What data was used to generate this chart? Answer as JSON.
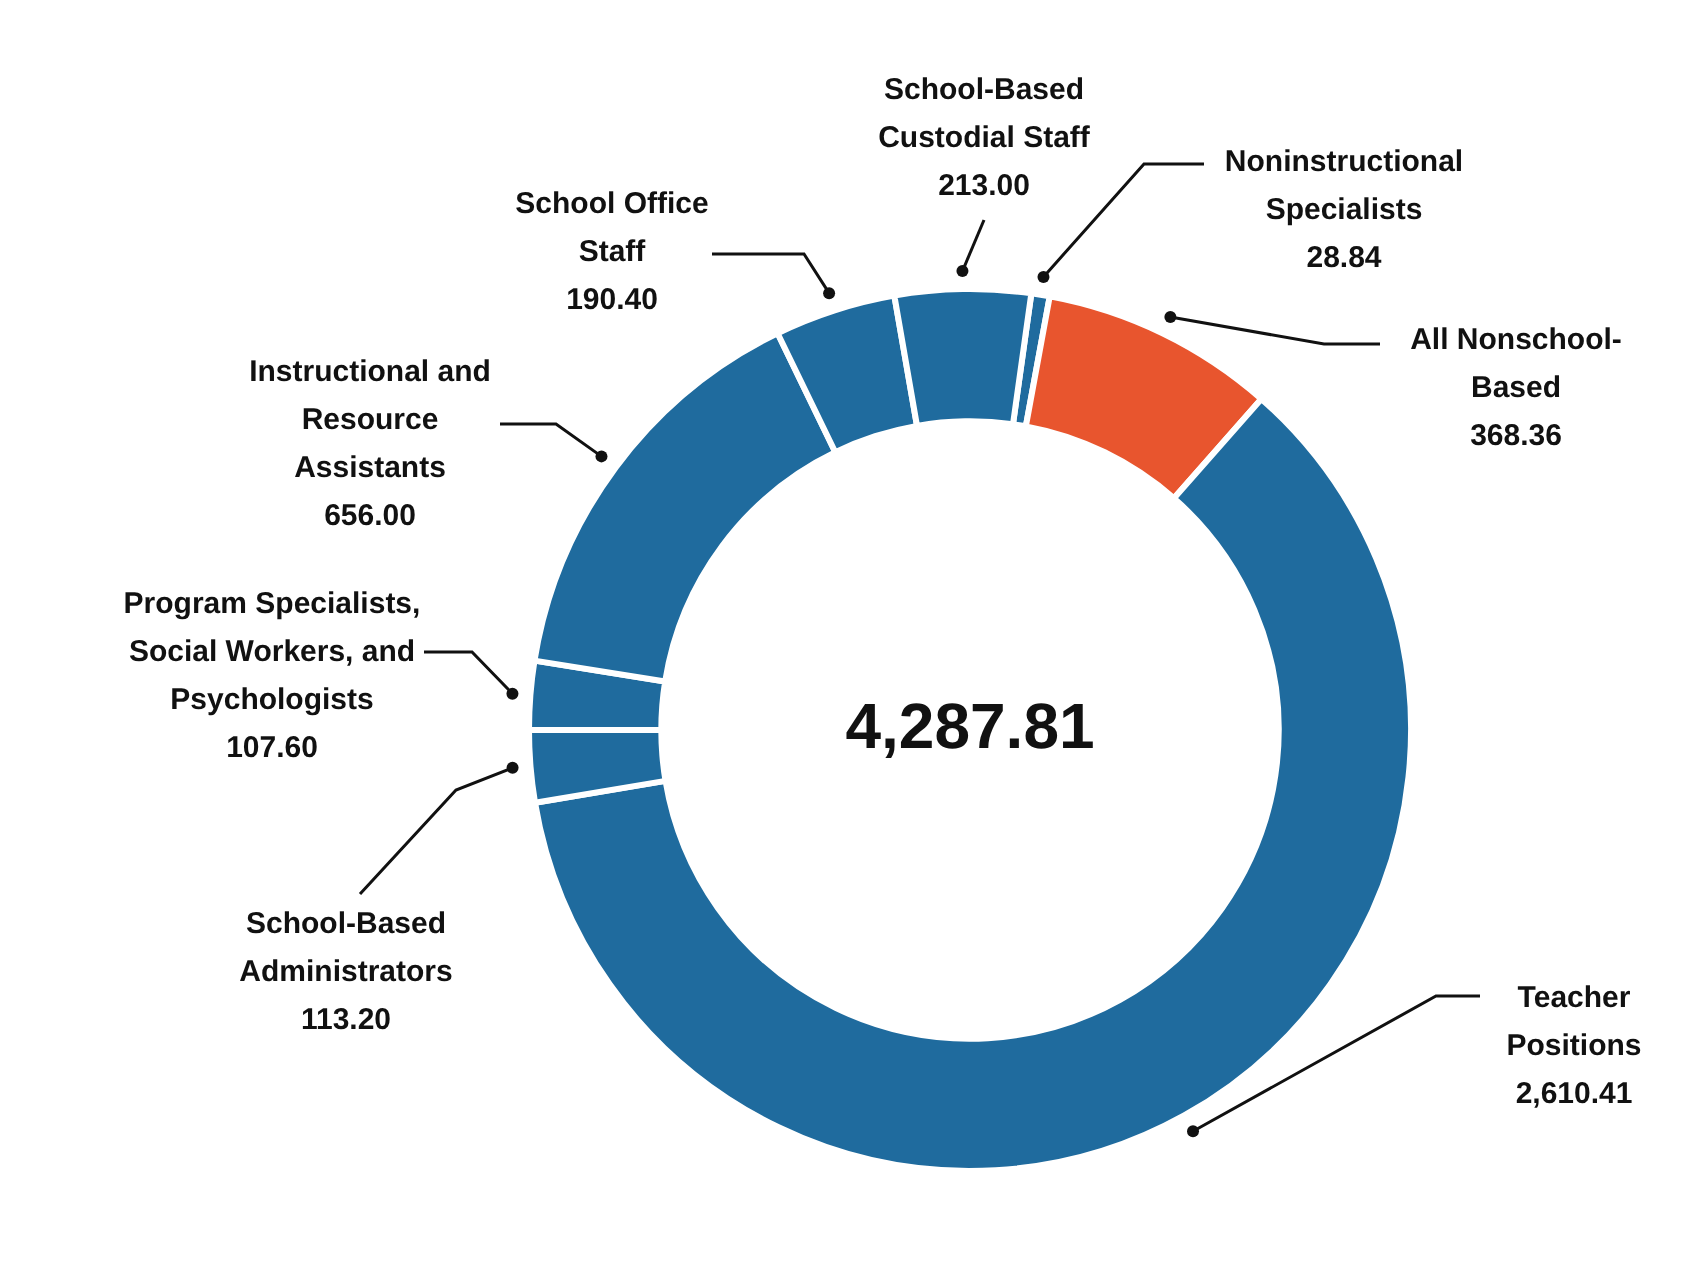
{
  "chart_data": {
    "type": "donut",
    "categories": [
      "Noninstructional Specialists",
      "All Nonschool-Based",
      "Teacher Positions",
      "School-Based Administrators",
      "Program Specialists, Social Workers, and Psychologists",
      "Instructional and Resource Assistants",
      "School Office Staff",
      "School-Based Custodial Staff"
    ],
    "values": [
      28.84,
      368.36,
      2610.41,
      113.2,
      107.6,
      656.0,
      190.4,
      213.0
    ],
    "value_labels": [
      "28.84",
      "368.36",
      "2,610.41",
      "113.20",
      "107.60",
      "656.00",
      "190.40",
      "213.00"
    ],
    "colors": [
      "#1f6b9e",
      "#e8552e",
      "#1f6b9e",
      "#1f6b9e",
      "#1f6b9e",
      "#1f6b9e",
      "#1f6b9e",
      "#1f6b9e"
    ],
    "annotations": [
      "4,287.81"
    ],
    "legend": false
  }
}
